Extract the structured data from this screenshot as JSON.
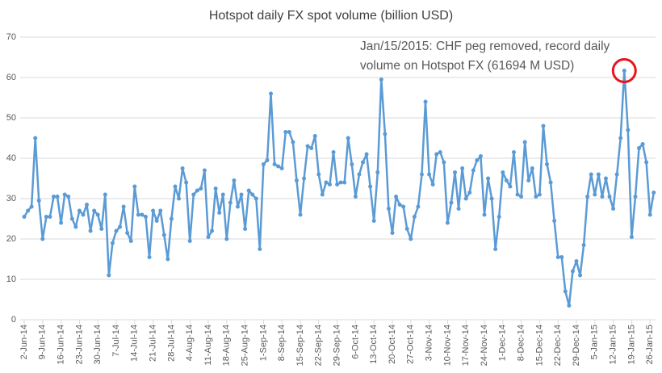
{
  "chart_data": {
    "type": "line",
    "title": "Hotspot daily FX spot volume (billion USD)",
    "annotation": [
      "Jan/15/2015: CHF peg removed, record daily",
      "volume on Hotspot FX (61694 M USD)"
    ],
    "annotation_color": "#e8141c",
    "color": "#5b9bd5",
    "ylim": [
      0,
      70
    ],
    "yticks": [
      0,
      10,
      20,
      30,
      40,
      50,
      60,
      70
    ],
    "grid": true,
    "categories": [
      "2-Jun-14",
      null,
      null,
      null,
      null,
      "9-Jun-14",
      null,
      null,
      null,
      null,
      "16-Jun-14",
      null,
      null,
      null,
      null,
      "23-Jun-14",
      null,
      null,
      null,
      null,
      "30-Jun-14",
      null,
      null,
      null,
      null,
      "7-Jul-14",
      null,
      null,
      null,
      null,
      "14-Jul-14",
      null,
      null,
      null,
      null,
      "21-Jul-14",
      null,
      null,
      null,
      null,
      "28-Jul-14",
      null,
      null,
      null,
      null,
      "4-Aug-14",
      null,
      null,
      null,
      null,
      "11-Aug-14",
      null,
      null,
      null,
      null,
      "18-Aug-14",
      null,
      null,
      null,
      null,
      "25-Aug-14",
      null,
      null,
      null,
      null,
      "1-Sep-14",
      null,
      null,
      null,
      null,
      "8-Sep-14",
      null,
      null,
      null,
      null,
      "15-Sep-14",
      null,
      null,
      null,
      null,
      "22-Sep-14",
      null,
      null,
      null,
      null,
      "29-Sep-14",
      null,
      null,
      null,
      null,
      "6-Oct-14",
      null,
      null,
      null,
      null,
      "13-Oct-14",
      null,
      null,
      null,
      null,
      "20-Oct-14",
      null,
      null,
      null,
      null,
      "27-Oct-14",
      null,
      null,
      null,
      null,
      "3-Nov-14",
      null,
      null,
      null,
      null,
      "10-Nov-14",
      null,
      null,
      null,
      null,
      "17-Nov-14",
      null,
      null,
      null,
      null,
      "24-Nov-14",
      null,
      null,
      null,
      null,
      "1-Dec-14",
      null,
      null,
      null,
      null,
      "8-Dec-14",
      null,
      null,
      null,
      null,
      "15-Dec-14",
      null,
      null,
      null,
      null,
      "22-Dec-14",
      null,
      null,
      null,
      null,
      "29-Dec-14",
      null,
      null,
      null,
      null,
      "5-Jan-15",
      null,
      null,
      null,
      null,
      "12-Jan-15",
      null,
      null,
      null,
      null,
      "19-Jan-15",
      null,
      null,
      null,
      null,
      "26-Jan-15",
      null
    ],
    "values": [
      25.5,
      27,
      28,
      45,
      29.5,
      20,
      25.5,
      25.5,
      30.5,
      30.5,
      24,
      31,
      30.5,
      25,
      23,
      27,
      26,
      28.5,
      22,
      27,
      26,
      22.5,
      31,
      11,
      19,
      22,
      23,
      28,
      21.5,
      19.5,
      33,
      26,
      26,
      25.5,
      15.5,
      27,
      24.5,
      27,
      21,
      15,
      25,
      33,
      30,
      37.5,
      34,
      19.5,
      31,
      32,
      32.5,
      37,
      20.5,
      22,
      32.5,
      26.5,
      31,
      20,
      29,
      34.5,
      28,
      31,
      22.5,
      32,
      31,
      30,
      17.5,
      38.5,
      39.5,
      56,
      38.5,
      38,
      37.5,
      46.5,
      46.5,
      44,
      34.5,
      26,
      35,
      43,
      42.5,
      45.5,
      36,
      31,
      34,
      33.5,
      41.5,
      33.5,
      34,
      34,
      45,
      38.5,
      30.5,
      36,
      39,
      41,
      33,
      24.5,
      36.5,
      59.5,
      46,
      27.5,
      21.5,
      30.5,
      28.5,
      28,
      22.5,
      20,
      25.5,
      28,
      36,
      54,
      36,
      33.5,
      41,
      41.5,
      39,
      24,
      29,
      36.5,
      27.5,
      37.5,
      30,
      31.5,
      37,
      39.5,
      40.5,
      26,
      35,
      30,
      17.5,
      25.5,
      36.5,
      34.5,
      33,
      41.5,
      31,
      30.5,
      44,
      34.5,
      37.5,
      30.5,
      31,
      48,
      38.5,
      34,
      24.5,
      15.5,
      15.5,
      7,
      3.5,
      12,
      14.5,
      11,
      18.5,
      30.5,
      36,
      31,
      36,
      30.5,
      35,
      30.5,
      27.5,
      36,
      45,
      61.694,
      47,
      20.5,
      30.5,
      42.5,
      43.5,
      39,
      26,
      31.5
    ]
  }
}
